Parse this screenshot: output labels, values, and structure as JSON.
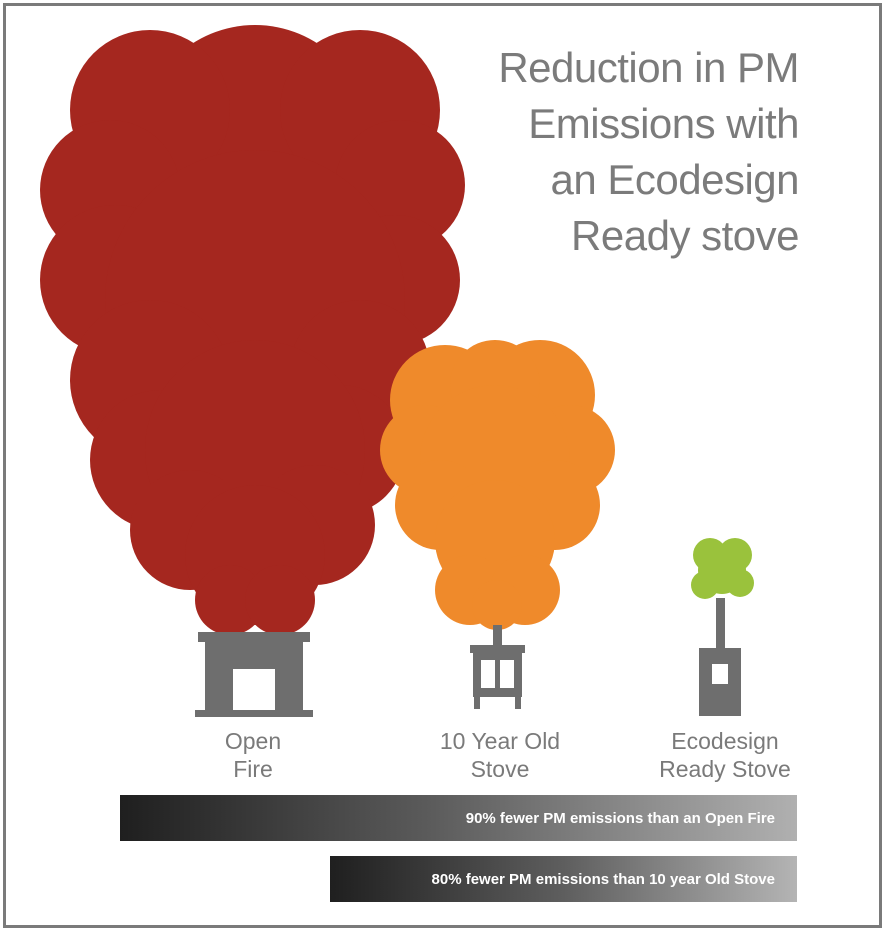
{
  "title": {
    "lines": [
      "Reduction in PM",
      "Emissions with",
      "an Ecodesign",
      "Ready stove"
    ]
  },
  "colors": {
    "open_fire_smoke": "#a5271f",
    "old_stove_smoke": "#ef8a2b",
    "ecodesign_smoke": "#9ac23c",
    "appliance": "#6e6e6e",
    "text": "#7a7a7a"
  },
  "labels": {
    "open_fire": [
      "Open",
      "Fire"
    ],
    "old_stove": [
      "10 Year Old",
      "Stove"
    ],
    "ecodesign": [
      "Ecodesign",
      "Ready Stove"
    ]
  },
  "bars": {
    "vs_open_fire": "90% fewer PM emissions than an Open Fire",
    "vs_old_stove": "80% fewer PM emissions than 10 year Old Stove"
  }
}
